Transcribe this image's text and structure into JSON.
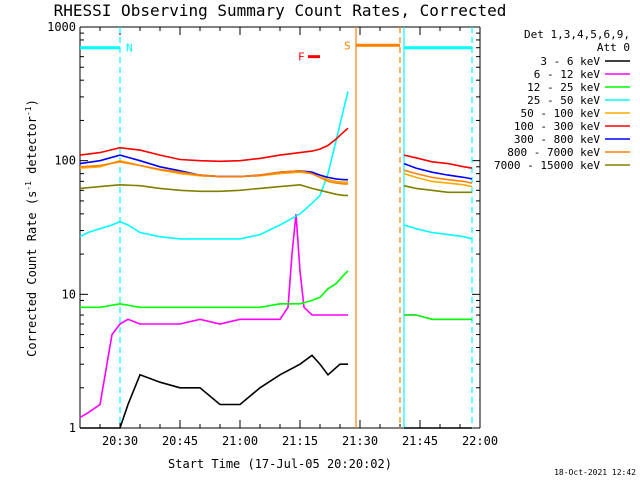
{
  "chart_data": {
    "type": "line",
    "title": "RHESSI Observing Summary Count Rates, Corrected",
    "xlabel": "Start Time (17-Jul-05 20:20:02)",
    "ylabel_main": "Corrected Count Rate (s",
    "ylabel_sup1": "-1",
    "ylabel_mid": " detector",
    "ylabel_sup2": "-1",
    "ylabel_end": ")",
    "yscale": "log",
    "ylim": [
      1,
      1000
    ],
    "xlim_minutes": [
      0,
      100
    ],
    "x_tick_labels": [
      "20:30",
      "20:45",
      "21:00",
      "21:15",
      "21:30",
      "21:45",
      "22:00"
    ],
    "x_tick_values": [
      10,
      25,
      40,
      55,
      70,
      85,
      100
    ],
    "y_tick_labels": [
      "1",
      "10",
      "100",
      "1000"
    ],
    "y_tick_values": [
      1,
      10,
      100,
      1000
    ],
    "legend_header": [
      "Det 1,3,4,5,6,9,",
      "Att 0"
    ],
    "series": [
      {
        "name": "3 - 6 keV",
        "color": "#000000",
        "x": [
          0,
          2,
          5,
          8,
          10,
          12,
          15,
          20,
          25,
          30,
          35,
          40,
          45,
          50,
          55,
          58,
          60,
          62,
          65,
          67
        ],
        "values": [
          1,
          1,
          1,
          1,
          1,
          1.5,
          2.5,
          2.2,
          2,
          2,
          1.5,
          1.5,
          2,
          2.5,
          3,
          3.5,
          3,
          2.5,
          3,
          3
        ]
      },
      {
        "name": "6 - 12 keV",
        "color": "#ff00ff",
        "x": [
          0,
          2,
          5,
          8,
          10,
          12,
          15,
          20,
          25,
          30,
          35,
          40,
          45,
          50,
          52,
          53,
          54,
          55,
          56,
          58,
          60,
          62,
          65,
          67
        ],
        "values": [
          1.2,
          1.3,
          1.5,
          5,
          6,
          6.5,
          6,
          6,
          6,
          6.5,
          6,
          6.5,
          6.5,
          6.5,
          8,
          20,
          40,
          15,
          8,
          7,
          7,
          7,
          7,
          7
        ]
      },
      {
        "name": "12 - 25 keV",
        "color": "#00ff00",
        "x": [
          0,
          5,
          10,
          15,
          20,
          25,
          30,
          35,
          40,
          45,
          50,
          55,
          58,
          60,
          62,
          64,
          66,
          67
        ],
        "values": [
          8,
          8,
          8.5,
          8,
          8,
          8,
          8,
          8,
          8,
          8,
          8.5,
          8.5,
          9,
          9.5,
          11,
          12,
          14,
          15
        ]
      },
      {
        "name": "25 - 50 keV",
        "color": "#00ffff",
        "x": [
          0,
          2,
          5,
          8,
          10,
          12,
          15,
          20,
          25,
          30,
          35,
          40,
          45,
          50,
          55,
          58,
          60,
          62,
          64,
          66,
          67
        ],
        "values": [
          27,
          29,
          31,
          33,
          35,
          33,
          29,
          27,
          26,
          26,
          26,
          26,
          28,
          33,
          40,
          48,
          55,
          80,
          140,
          250,
          330
        ]
      },
      {
        "name": "50 - 100 keV",
        "color": "#ffaa00",
        "x": [
          0,
          5,
          10,
          15,
          20,
          25,
          30,
          35,
          40,
          45,
          50,
          55,
          58,
          60,
          62,
          64,
          66,
          67
        ],
        "values": [
          88,
          90,
          100,
          92,
          85,
          80,
          77,
          76,
          76,
          77,
          80,
          82,
          80,
          78,
          72,
          70,
          69,
          69
        ]
      },
      {
        "name": "100 - 300 keV",
        "color": "#ff0000",
        "x": [
          0,
          5,
          10,
          15,
          20,
          25,
          30,
          35,
          40,
          45,
          50,
          55,
          58,
          60,
          62,
          64,
          66,
          67
        ],
        "values": [
          110,
          115,
          125,
          120,
          110,
          102,
          100,
          99,
          100,
          104,
          110,
          115,
          118,
          122,
          130,
          145,
          165,
          175
        ]
      },
      {
        "name": "300 - 800 keV",
        "color": "#0000ff",
        "x": [
          0,
          5,
          10,
          15,
          20,
          25,
          30,
          35,
          40,
          45,
          50,
          55,
          58,
          60,
          62,
          64,
          66,
          67
        ],
        "values": [
          95,
          100,
          110,
          100,
          90,
          84,
          78,
          76,
          76,
          78,
          82,
          84,
          82,
          78,
          75,
          73,
          72,
          72
        ]
      },
      {
        "name": "800 - 7000 keV",
        "color": "#ff8000",
        "x": [
          0,
          5,
          10,
          15,
          20,
          25,
          30,
          35,
          40,
          45,
          50,
          55,
          58,
          60,
          62,
          64,
          66,
          67
        ],
        "values": [
          90,
          92,
          98,
          92,
          86,
          82,
          78,
          76,
          76,
          78,
          82,
          84,
          80,
          75,
          70,
          68,
          67,
          67
        ]
      },
      {
        "name": "7000 - 15000 keV",
        "color": "#808000",
        "x": [
          0,
          5,
          10,
          15,
          20,
          25,
          30,
          35,
          40,
          45,
          50,
          55,
          58,
          60,
          62,
          64,
          66,
          67
        ],
        "values": [
          62,
          64,
          66,
          65,
          62,
          60,
          59,
          59,
          60,
          62,
          64,
          66,
          62,
          60,
          58,
          56,
          55,
          55
        ]
      }
    ],
    "post_gap_series": [
      {
        "name": "3 - 6 keV",
        "x": [
          81,
          84,
          88,
          92,
          96,
          98
        ],
        "values": [
          1,
          1,
          1,
          1,
          1,
          1
        ]
      },
      {
        "name": "6 - 12 keV",
        "x": [
          81,
          84,
          88,
          92,
          96,
          98
        ],
        "values": [
          7,
          7,
          6.5,
          6.5,
          6.5,
          6.5
        ]
      },
      {
        "name": "12 - 25 keV",
        "x": [
          81,
          84,
          88,
          92,
          96,
          98
        ],
        "values": [
          7,
          7,
          6.5,
          6.5,
          6.5,
          6.5
        ]
      },
      {
        "name": "25 - 50 keV",
        "x": [
          81,
          84,
          88,
          92,
          96,
          98
        ],
        "values": [
          33,
          31,
          29,
          28,
          27,
          26
        ]
      },
      {
        "name": "50 - 100 keV",
        "x": [
          81,
          84,
          88,
          92,
          96,
          98
        ],
        "values": [
          80,
          75,
          70,
          68,
          66,
          64
        ]
      },
      {
        "name": "100 - 300 keV",
        "x": [
          81,
          84,
          88,
          92,
          96,
          98
        ],
        "values": [
          110,
          105,
          98,
          95,
          90,
          88
        ]
      },
      {
        "name": "300 - 800 keV",
        "x": [
          81,
          84,
          88,
          92,
          96,
          98
        ],
        "values": [
          95,
          88,
          82,
          78,
          75,
          73
        ]
      },
      {
        "name": "800 - 7000 keV",
        "x": [
          81,
          84,
          88,
          92,
          96,
          98
        ],
        "values": [
          85,
          80,
          75,
          72,
          70,
          68
        ]
      },
      {
        "name": "7000 - 15000 keV",
        "x": [
          81,
          84,
          88,
          92,
          96,
          98
        ],
        "values": [
          65,
          62,
          60,
          58,
          58,
          58
        ]
      }
    ],
    "annotations": [
      {
        "label": "N",
        "color": "#00ffff",
        "x_start": 0,
        "x_end": 10,
        "y": 700
      },
      {
        "label": "F",
        "color": "#ff0000",
        "x_start": 57,
        "x_end": 60,
        "y": 600
      },
      {
        "label": "S",
        "color": "#ff8000",
        "x_start": 69,
        "x_end": 80,
        "y": 730
      },
      {
        "label": "",
        "color": "#00ffff",
        "x_start": 81,
        "x_end": 98,
        "y": 700
      }
    ],
    "vertical_lines": [
      {
        "x": 10,
        "color": "#00ffff",
        "style": "dashed"
      },
      {
        "x": 69,
        "color": "#ff8000",
        "style": "solid"
      },
      {
        "x": 80,
        "color": "#ff8000",
        "style": "dashed"
      },
      {
        "x": 81,
        "color": "#00ffff",
        "style": "solid"
      },
      {
        "x": 98,
        "color": "#00ffff",
        "style": "dashed"
      }
    ],
    "footer_date": "18-Oct-2021 12:42"
  }
}
